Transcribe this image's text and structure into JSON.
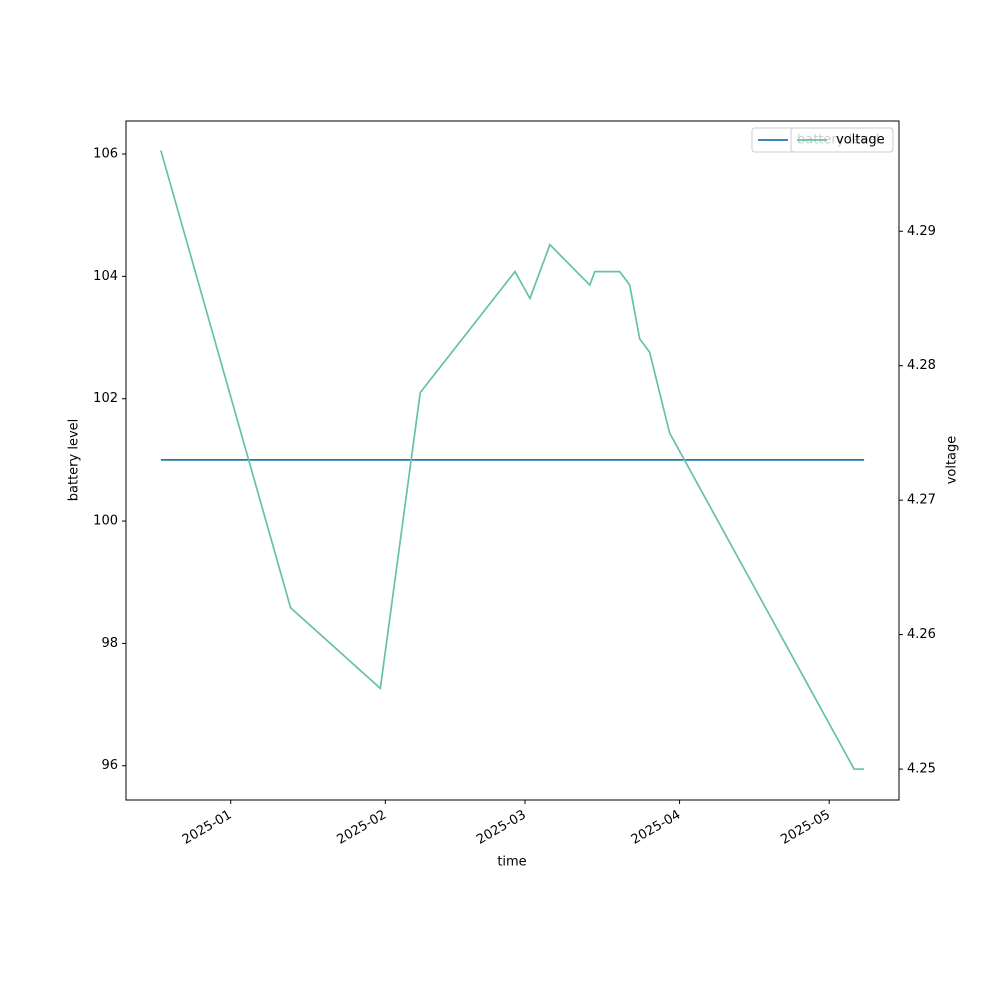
{
  "chart_data": {
    "type": "line",
    "xlabel": "time",
    "ylabel": "battery level",
    "y2label": "voltage",
    "x": [
      "2024-12-18",
      "2025-01-13",
      "2025-01-31",
      "2025-02-08",
      "2025-02-27",
      "2025-03-02",
      "2025-03-06",
      "2025-03-14",
      "2025-03-15",
      "2025-03-20",
      "2025-03-22",
      "2025-03-24",
      "2025-03-26",
      "2025-03-30",
      "2025-05-06",
      "2025-05-08"
    ],
    "series": [
      {
        "name": "battery level",
        "color": "#1f77b4",
        "values": [
          101,
          101,
          101,
          101,
          101,
          101,
          101,
          101,
          101,
          101,
          101,
          101,
          101,
          101,
          101,
          101
        ]
      },
      {
        "name": "voltage",
        "color": "#66c2a5",
        "axis": "y2",
        "values": [
          4.296,
          4.262,
          4.256,
          4.278,
          4.287,
          4.285,
          4.289,
          4.286,
          4.287,
          4.287,
          4.286,
          4.282,
          4.281,
          4.275,
          4.25,
          4.25
        ]
      }
    ],
    "xlim": [
      "2024-12-11",
      "2025-05-15"
    ],
    "xticks": [
      {
        "value": "2025-01-01",
        "label": "2025-01"
      },
      {
        "value": "2025-02-01",
        "label": "2025-02"
      },
      {
        "value": "2025-03-01",
        "label": "2025-03"
      },
      {
        "value": "2025-04-01",
        "label": "2025-04"
      },
      {
        "value": "2025-05-01",
        "label": "2025-05"
      }
    ],
    "ylim": [
      95.44,
      106.54
    ],
    "yticks": [
      96,
      98,
      100,
      102,
      104,
      106
    ],
    "y2lim": [
      4.2477,
      4.2982
    ],
    "y2ticks": [
      4.25,
      4.26,
      4.27,
      4.28,
      4.29
    ],
    "legend": "upper right"
  }
}
